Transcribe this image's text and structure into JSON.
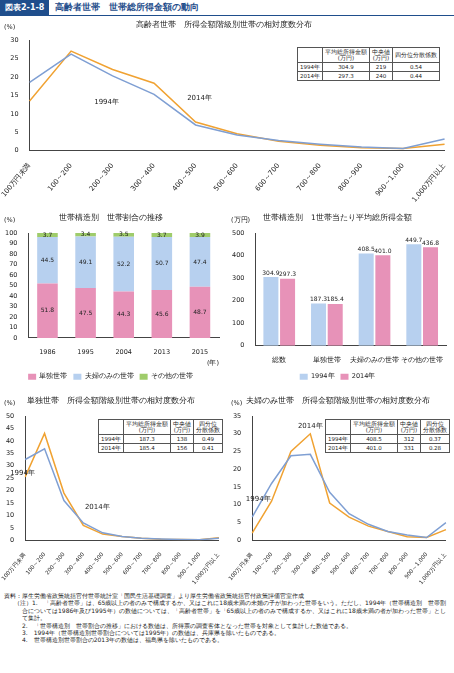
{
  "header": {
    "label": "図表2-1-8",
    "title": "高齢者世帯　世帯総所得金額の動向"
  },
  "chart_data": [
    {
      "type": "line",
      "title": "高齢者世帯　所得金額階級別世帯の相対度数分布",
      "y_label": "(%)",
      "categories": [
        "100万円未満",
        "100～200",
        "200～300",
        "300～400",
        "400～500",
        "500～600",
        "600～700",
        "700～800",
        "800～900",
        "900～1,000",
        "1,000万円以上"
      ],
      "series": [
        {
          "name": "1994年",
          "color": "#7f9fd3",
          "values": [
            18.5,
            26.2,
            20.3,
            15.3,
            7.0,
            4.3,
            2.8,
            1.8,
            1.0,
            0.6,
            3.2
          ]
        },
        {
          "name": "2014年",
          "color": "#f0a232",
          "values": [
            13.5,
            27.0,
            22.0,
            18.3,
            7.8,
            4.6,
            2.6,
            1.5,
            0.8,
            0.6,
            1.8
          ]
        }
      ],
      "ylim": [
        0,
        30
      ],
      "yticks": [
        0,
        5,
        10,
        15,
        20,
        25,
        30
      ],
      "grid": false,
      "table": {
        "columns": [
          "平均総所得金額\n(万円)",
          "中央値\n(万円)",
          "四分位分散係数"
        ],
        "rows": [
          [
            "1994年",
            "304.9",
            "219",
            "0.54"
          ],
          [
            "2014年",
            "297.3",
            "240",
            "0.44"
          ]
        ]
      }
    },
    {
      "type": "bar",
      "title": "世帯構造別　世帯割合の推移",
      "y_label": "(%)",
      "x_label": "(年)",
      "categories": [
        "1986",
        "1995",
        "2004",
        "2013",
        "2015"
      ],
      "series": [
        {
          "name": "単独世帯",
          "color": "#e792b8",
          "values": [
            51.8,
            47.5,
            44.3,
            45.6,
            48.7
          ]
        },
        {
          "name": "夫婦のみの世帯",
          "color": "#b7d0ef",
          "values": [
            44.5,
            49.1,
            52.2,
            50.7,
            47.4
          ]
        },
        {
          "name": "その他の世帯",
          "color": "#9fcc6b",
          "values": [
            3.7,
            3.4,
            3.5,
            3.7,
            3.9
          ]
        }
      ],
      "ylim": [
        0,
        100
      ],
      "yticks": [
        0,
        10,
        20,
        30,
        40,
        50,
        60,
        70,
        80,
        90,
        100
      ],
      "stacked": true,
      "data_labels": true,
      "legend": "bottom",
      "grid": false
    },
    {
      "type": "bar",
      "title": "世帯構造別　1世帯当たり平均総所得金額",
      "y_label": "(万円)",
      "categories": [
        "総数",
        "単独世帯",
        "夫婦のみの世帯",
        "その他の世帯"
      ],
      "series": [
        {
          "name": "1994年",
          "color": "#b7d0ef",
          "values": [
            304.9,
            187.3,
            408.5,
            449.7
          ],
          "value_labels": [
            "304.9",
            "187.3",
            "408.5",
            "449.7"
          ]
        },
        {
          "name": "2014年",
          "color": "#e792b8",
          "values": [
            297.3,
            185.4,
            401.0,
            436.8
          ],
          "value_labels": [
            "297.3",
            "185.4",
            "401.0",
            "436.8"
          ]
        }
      ],
      "ylim": [
        0,
        500
      ],
      "yticks": [
        0,
        100,
        200,
        300,
        400,
        500
      ],
      "data_labels": true,
      "legend": "bottom",
      "grid": false
    },
    {
      "type": "line",
      "title": "単独世帯　所得金額階級別世帯の相対度数分布",
      "y_label": "(%)",
      "categories": [
        "100万円未満",
        "100～200",
        "200～300",
        "300～400",
        "400～500",
        "500～600",
        "600～700",
        "700～800",
        "800～900",
        "900～1,000",
        "1,000万円以上"
      ],
      "series": [
        {
          "name": "1994年",
          "color": "#7f9fd3",
          "values": [
            32.5,
            36.8,
            16.0,
            7.0,
            3.0,
            1.5,
            0.8,
            0.5,
            0.3,
            0.2,
            0.8
          ]
        },
        {
          "name": "2014年",
          "color": "#f0a232",
          "values": [
            25.5,
            43.0,
            19.0,
            6.0,
            2.5,
            1.5,
            0.8,
            0.4,
            0.3,
            0.2,
            1.0
          ]
        }
      ],
      "ylim": [
        0,
        50
      ],
      "yticks": [
        0,
        5,
        10,
        15,
        20,
        25,
        30,
        35,
        40,
        45,
        50
      ],
      "grid": false,
      "table": {
        "columns": [
          "平均総所得金額\n(万円)",
          "中央値\n(万円)",
          "四分位\n分散係数"
        ],
        "rows": [
          [
            "1994年",
            "187.3",
            "138",
            "0.49"
          ],
          [
            "2014年",
            "185.4",
            "156",
            "0.41"
          ]
        ]
      }
    },
    {
      "type": "line",
      "title": "夫婦のみ世帯　所得金額階級別世帯の相対度数分布",
      "y_label": "(%)",
      "categories": [
        "100万円未満",
        "100～200",
        "200～300",
        "300～400",
        "400～500",
        "500～600",
        "600～700",
        "700～800",
        "800～900",
        "900～1,000",
        "1,000万円以上"
      ],
      "series": [
        {
          "name": "1994年",
          "color": "#7f9fd3",
          "values": [
            6.5,
            16.0,
            23.8,
            24.2,
            13.5,
            7.5,
            4.5,
            2.5,
            1.5,
            0.8,
            5.0
          ]
        },
        {
          "name": "2014年",
          "color": "#f0a232",
          "values": [
            2.0,
            11.0,
            25.0,
            30.0,
            10.5,
            6.5,
            4.0,
            2.5,
            1.0,
            0.8,
            3.0
          ]
        }
      ],
      "ylim": [
        0,
        35
      ],
      "yticks": [
        0,
        5,
        10,
        15,
        20,
        25,
        30,
        35
      ],
      "grid": false,
      "table": {
        "columns": [
          "平均総所得金額\n(万円)",
          "中央値\n(万円)",
          "四分位\n分散係数"
        ],
        "rows": [
          [
            "1994年",
            "408.5",
            "312",
            "0.37"
          ],
          [
            "2014年",
            "401.0",
            "331",
            "0.28"
          ]
        ]
      }
    }
  ],
  "notes": {
    "source": "資料：厚生労働省政策統括官付世帯統計室「国民生活基礎調査」より厚生労働省政策統括官付政策評価官室作成",
    "heading": "（注）",
    "items": [
      "1.　「高齢者世帯」は、65歳以上の者のみで構成するか、又はこれに18歳未満の未婚の子が加わった世帯をいう。ただし、1994年（世帯構造別　世帯割合については1986年及び1995年）の数値については、「高齢者世帯」を「65歳以上の者のみで構成するか、又はこれに18歳未満の者が加わった世帯」として集計。",
      "2.　「世帯構造別　世帯割合の推移」における数値は、所得票の調査客体となった世帯を対象として集計した数値である。",
      "3.　1994年（世帯構造別世帯割合については1995年）の数値は、兵庫県を除いたものである。",
      "4.　世帯構造別世帯割合の2013年の数値は、福島県を除いたものである。"
    ]
  }
}
